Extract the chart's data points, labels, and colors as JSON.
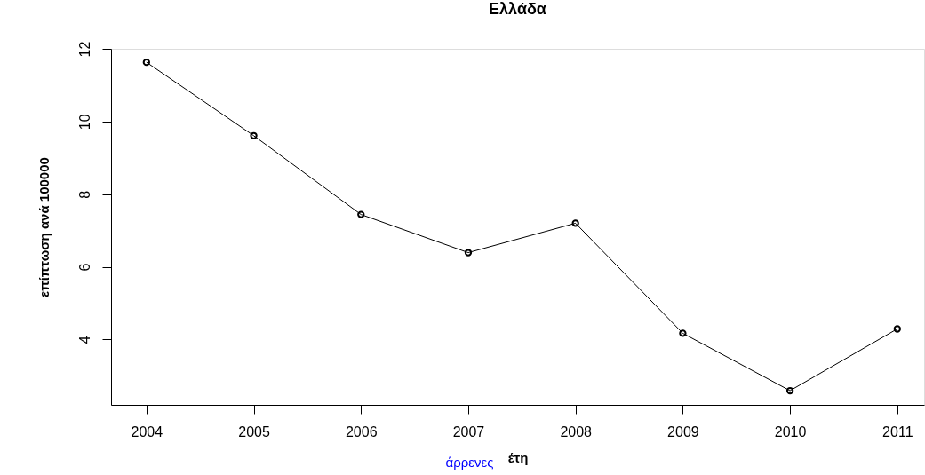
{
  "chart_data": {
    "type": "line",
    "title": "Ελλάδα",
    "xlabel": "έτη",
    "ylabel": "επίπτωση ανά 100000",
    "annotations": [
      "άρρενες"
    ],
    "x": [
      2004,
      2005,
      2006,
      2007,
      2008,
      2009,
      2010,
      2011
    ],
    "series": [
      {
        "color": "#000000",
        "values": [
          11.63,
          9.61,
          7.44,
          6.39,
          7.2,
          4.17,
          2.59,
          4.29
        ]
      }
    ],
    "xlim": [
      2003.67,
      2011.25
    ],
    "ylim": [
      2.2,
      12
    ],
    "xticks": [
      2004,
      2005,
      2006,
      2007,
      2008,
      2009,
      2010,
      2011
    ],
    "yticks": [
      4,
      6,
      8,
      10,
      12
    ],
    "grid": false,
    "marker": "circle",
    "line_style": "solid"
  }
}
